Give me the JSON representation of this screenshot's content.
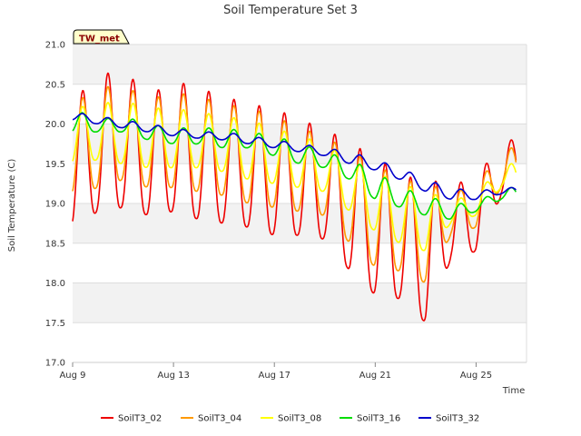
{
  "chart_data": {
    "type": "line",
    "title": "Soil Temperature Set 3",
    "site_label": "TW_met",
    "xlabel": "Time",
    "ylabel": "Soil Temperature (C)",
    "xlim": [
      "2024-08-09",
      "2024-08-27"
    ],
    "ylim": [
      17.0,
      21.0
    ],
    "x_ticks": [
      {
        "date": "2024-08-09",
        "label": "Aug 9"
      },
      {
        "date": "2024-08-13",
        "label": "Aug 13"
      },
      {
        "date": "2024-08-17",
        "label": "Aug 17"
      },
      {
        "date": "2024-08-21",
        "label": "Aug 21"
      },
      {
        "date": "2024-08-25",
        "label": "Aug 25"
      }
    ],
    "y_ticks": [
      "17.0",
      "17.5",
      "18.0",
      "18.5",
      "19.0",
      "19.5",
      "20.0",
      "20.5",
      "21.0"
    ],
    "grid": true,
    "legend_position": "bottom",
    "x": [
      "2024-08-09",
      "2024-08-10",
      "2024-08-11",
      "2024-08-12",
      "2024-08-13",
      "2024-08-14",
      "2024-08-15",
      "2024-08-16",
      "2024-08-17",
      "2024-08-18",
      "2024-08-19",
      "2024-08-20",
      "2024-08-21",
      "2024-08-22",
      "2024-08-23",
      "2024-08-24",
      "2024-08-25",
      "2024-08-26"
    ],
    "series": [
      {
        "name": "SoilT3_02",
        "color": "#ee0000",
        "max": [
          20.3,
          20.6,
          20.7,
          20.35,
          20.55,
          20.45,
          20.35,
          20.25,
          20.2,
          20.05,
          19.95,
          19.75,
          19.6,
          19.35,
          19.3,
          19.25,
          19.3,
          19.8
        ],
        "min": [
          18.7,
          18.9,
          18.95,
          18.85,
          18.9,
          18.8,
          18.75,
          18.7,
          18.6,
          18.6,
          18.55,
          18.15,
          17.85,
          17.8,
          17.5,
          18.3,
          18.4,
          19.1
        ]
      },
      {
        "name": "SoilT3_04",
        "color": "#ff9900",
        "max": [
          20.25,
          20.45,
          20.5,
          20.3,
          20.4,
          20.35,
          20.25,
          20.2,
          20.1,
          19.95,
          19.85,
          19.65,
          19.5,
          19.3,
          19.25,
          19.15,
          19.2,
          19.7
        ],
        "min": [
          19.1,
          19.2,
          19.3,
          19.2,
          19.2,
          19.15,
          19.1,
          19.0,
          18.95,
          18.9,
          18.85,
          18.5,
          18.2,
          18.15,
          18.0,
          18.6,
          18.7,
          19.2
        ]
      },
      {
        "name": "SoilT3_08",
        "color": "#ffff00",
        "max": [
          20.2,
          20.25,
          20.3,
          20.2,
          20.2,
          20.15,
          20.1,
          20.05,
          19.95,
          19.85,
          19.75,
          19.55,
          19.4,
          19.25,
          19.15,
          19.05,
          19.1,
          19.5
        ],
        "min": [
          19.5,
          19.55,
          19.5,
          19.45,
          19.45,
          19.45,
          19.4,
          19.3,
          19.25,
          19.2,
          19.15,
          18.9,
          18.65,
          18.5,
          18.4,
          18.75,
          18.85,
          19.2
        ]
      },
      {
        "name": "SoilT3_16",
        "color": "#00dd00",
        "max": [
          20.2,
          20.05,
          20.1,
          20.0,
          19.95,
          19.95,
          19.95,
          19.9,
          19.85,
          19.75,
          19.65,
          19.55,
          19.4,
          19.2,
          19.1,
          19.0,
          19.0,
          19.2
        ],
        "min": [
          19.9,
          19.9,
          19.9,
          19.8,
          19.75,
          19.75,
          19.7,
          19.7,
          19.6,
          19.5,
          19.45,
          19.3,
          19.05,
          18.95,
          18.85,
          18.8,
          18.9,
          19.05
        ]
      },
      {
        "name": "SoilT3_32",
        "color": "#0000cc",
        "max": [
          20.15,
          20.1,
          20.05,
          20.0,
          19.95,
          19.9,
          19.9,
          19.85,
          19.8,
          19.75,
          19.7,
          19.65,
          19.55,
          19.45,
          19.3,
          19.2,
          19.15,
          19.2
        ],
        "min": [
          20.05,
          20.0,
          19.95,
          19.9,
          19.85,
          19.82,
          19.8,
          19.75,
          19.7,
          19.65,
          19.6,
          19.5,
          19.42,
          19.3,
          19.15,
          19.05,
          19.05,
          19.12
        ]
      }
    ]
  }
}
